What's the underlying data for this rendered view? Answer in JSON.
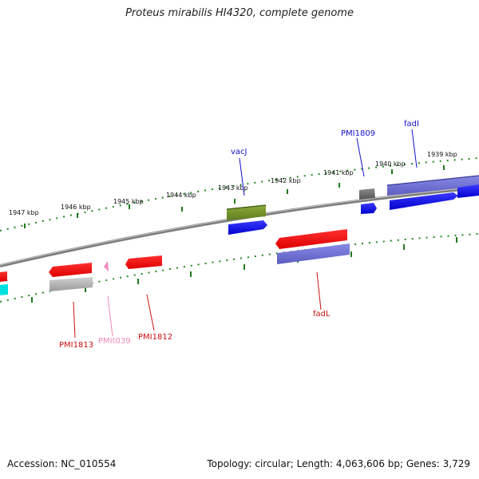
{
  "title": "Proteus mirabilis HI4320, complete genome",
  "footer": {
    "accession": "Accession: NC_010554",
    "info": "Topology: circular; Length: 4,063,606 bp; Genes: 3,729"
  },
  "colors": {
    "backbone": "#8a8a8a",
    "ticks": "#1f7a1f",
    "forward_label": "#1010cc",
    "reverse_label": "#cc1111",
    "rna_label": "#ee88bb"
  },
  "tick_labels": [
    "1947 kbp",
    "1946 kbp",
    "1945 kbp",
    "1944 kbp",
    "1943 kbp",
    "1942 kbp",
    "1941 kbp",
    "1940 kbp",
    "1939 kbp"
  ],
  "gene_labels": {
    "vacJ": "vacJ",
    "pmi1809": "PMI1809",
    "fadI": "fadI",
    "fadL": "fadL",
    "pmi1813": "PMI1813",
    "pmit039": "PMIt039",
    "pmi1812": "PMI1812"
  }
}
